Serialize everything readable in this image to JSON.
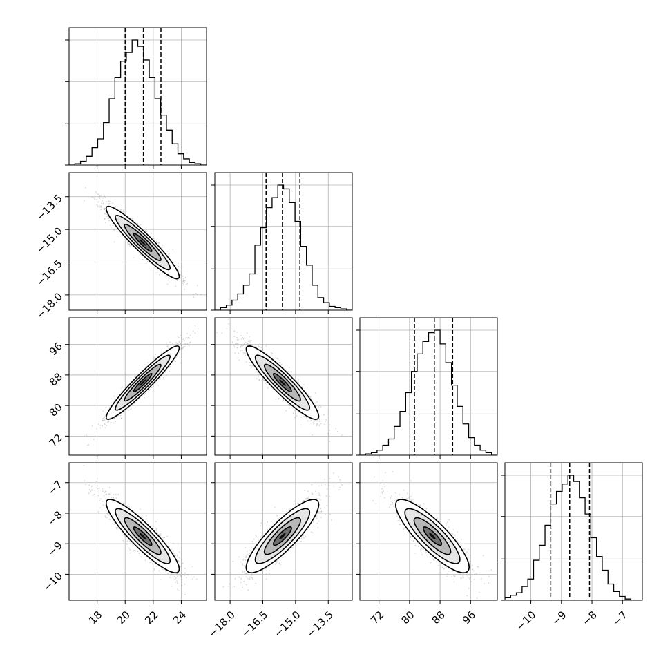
{
  "chart_data": {
    "type": "corner",
    "title": "",
    "parameters": [
      {
        "label": "",
        "range": [
          16.0,
          25.8
        ],
        "ticks": [
          18,
          20,
          22,
          24
        ],
        "tick_labels": [
          "18",
          "20",
          "22",
          "24"
        ],
        "mean": 21.25,
        "sd": 1.3,
        "quantiles": [
          20.0,
          21.3,
          22.55
        ],
        "histogram": [
          0,
          0.01,
          0.03,
          0.07,
          0.14,
          0.21,
          0.34,
          0.53,
          0.7,
          0.83,
          0.9,
          1.0,
          0.95,
          0.84,
          0.7,
          0.53,
          0.4,
          0.28,
          0.17,
          0.09,
          0.05,
          0.02,
          0.01,
          0
        ]
      },
      {
        "label": "",
        "range": [
          -18.7,
          -12.4
        ],
        "ticks": [
          -18.0,
          -16.5,
          -15.0,
          -13.5
        ],
        "tick_labels": [
          "−18.0",
          "−16.5",
          "−15.0",
          "−13.5"
        ],
        "mean": -15.6,
        "sd": 0.83,
        "quantiles": [
          -16.35,
          -15.6,
          -14.8
        ],
        "histogram": [
          0,
          0.02,
          0.04,
          0.08,
          0.13,
          0.2,
          0.29,
          0.52,
          0.66,
          0.82,
          0.9,
          1.0,
          0.97,
          0.86,
          0.71,
          0.51,
          0.36,
          0.2,
          0.1,
          0.06,
          0.03,
          0.02,
          0.01,
          0
        ]
      },
      {
        "label": "",
        "range": [
          67.0,
          103.0
        ],
        "ticks": [
          72,
          80,
          88,
          96
        ],
        "tick_labels": [
          "72",
          "80",
          "88",
          "96"
        ],
        "mean": 86.0,
        "sd": 4.8,
        "quantiles": [
          81.3,
          86.5,
          91.3
        ],
        "histogram": [
          0,
          0.01,
          0.02,
          0.04,
          0.08,
          0.13,
          0.23,
          0.35,
          0.5,
          0.67,
          0.81,
          0.91,
          0.98,
          1.0,
          0.89,
          0.74,
          0.56,
          0.39,
          0.25,
          0.14,
          0.08,
          0.04,
          0.02,
          0
        ]
      },
      {
        "label": "",
        "range": [
          -10.85,
          -6.35
        ],
        "ticks": [
          -10,
          -9,
          -8,
          -7
        ],
        "tick_labels": [
          "−10",
          "−9",
          "−8",
          "−7"
        ],
        "mean": -8.75,
        "sd": 0.6,
        "quantiles": [
          -9.35,
          -8.73,
          -8.08
        ],
        "histogram": [
          0.02,
          0.04,
          0.06,
          0.11,
          0.17,
          0.32,
          0.44,
          0.6,
          0.77,
          0.87,
          0.93,
          1.0,
          0.95,
          0.82,
          0.69,
          0.5,
          0.35,
          0.24,
          0.13,
          0.07,
          0.03,
          0.01,
          0.0,
          0
        ]
      }
    ],
    "correlations": [
      [
        1.0,
        -0.94,
        0.95,
        -0.9
      ],
      [
        -0.94,
        1.0,
        -0.92,
        0.86
      ],
      [
        0.95,
        -0.92,
        1.0,
        -0.85
      ],
      [
        -0.9,
        0.86,
        -0.85,
        1.0
      ]
    ],
    "contour_levels_sigma": [
      0.5,
      1.0,
      1.5,
      2.0
    ],
    "grid": true
  }
}
